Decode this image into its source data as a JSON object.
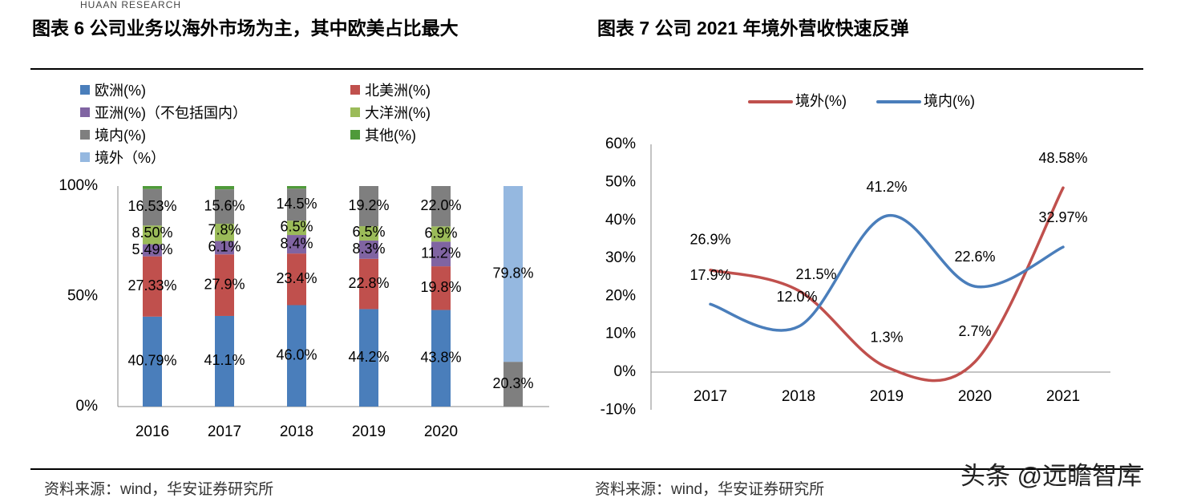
{
  "header": {
    "brand": "HUAAN RESEARCH"
  },
  "left": {
    "title": "图表 6 公司业务以海外市场为主，其中欧美占比最大",
    "source": "资料来源：wind，华安证券研究所"
  },
  "right": {
    "title": "图表 7  公司 2021 年境外营收快速反弹",
    "source": "资料来源：wind，华安证券研究所"
  },
  "watermark": "头条 @远瞻智库",
  "chart_data": [
    {
      "type": "bar",
      "stacked": true,
      "categories": [
        "2016",
        "2017",
        "2018",
        "2019",
        "2020",
        ""
      ],
      "ylim": [
        0,
        100
      ],
      "yticks": [
        "0%",
        "50%",
        "100%"
      ],
      "legend_position": "top",
      "series": [
        {
          "name": "欧洲(%)",
          "color": "#4a7ebb",
          "values": [
            40.79,
            41.1,
            46.0,
            44.2,
            43.8,
            null
          ],
          "labels": [
            "40.79%",
            "41.1%",
            "46.0%",
            "44.2%",
            "43.8%",
            ""
          ]
        },
        {
          "name": "北美洲(%)",
          "color": "#c0504d",
          "values": [
            27.33,
            27.9,
            23.4,
            22.8,
            19.8,
            null
          ],
          "labels": [
            "27.33%",
            "27.9%",
            "23.4%",
            "22.8%",
            "19.8%",
            ""
          ]
        },
        {
          "name": "亚洲(%)（不包括国内）",
          "color": "#8064a2",
          "values": [
            5.49,
            6.1,
            8.4,
            8.3,
            11.2,
            null
          ],
          "labels": [
            "5.49%",
            "6.1%",
            "8.4%",
            "8.3%",
            "11.2%",
            ""
          ]
        },
        {
          "name": "大洋洲(%)",
          "color": "#9bbb59",
          "values": [
            8.5,
            7.8,
            6.5,
            6.5,
            6.9,
            null
          ],
          "labels": [
            "8.50%",
            "7.8%",
            "6.5%",
            "6.5%",
            "6.9%",
            ""
          ]
        },
        {
          "name": "境内(%)",
          "color": "#7f7f7f",
          "values": [
            16.53,
            15.6,
            14.5,
            19.2,
            22.0,
            20.3
          ],
          "labels": [
            "16.53%",
            "15.6%",
            "14.5%",
            "19.2%",
            "22.0%",
            "20.3%"
          ]
        },
        {
          "name": "其他(%)",
          "color": "#4f9a3a",
          "values": [
            1.4,
            1.5,
            1.2,
            1.3,
            0.5,
            null
          ],
          "labels": [
            "",
            "",
            "",
            "",
            "",
            ""
          ]
        },
        {
          "name": "境外（%）",
          "color": "#95b8e0",
          "values": [
            null,
            null,
            null,
            null,
            null,
            79.8
          ],
          "labels": [
            "",
            "",
            "",
            "",
            "",
            "79.8%"
          ]
        }
      ]
    },
    {
      "type": "line",
      "smooth": true,
      "categories": [
        "2017",
        "2018",
        "2019",
        "2020",
        "2021"
      ],
      "ylim": [
        -10,
        60
      ],
      "yticks": [
        "-10%",
        "0%",
        "10%",
        "20%",
        "30%",
        "40%",
        "50%",
        "60%"
      ],
      "legend_position": "top",
      "series": [
        {
          "name": "境外(%)",
          "color": "#c0504d",
          "values": [
            26.9,
            21.5,
            1.3,
            2.7,
            48.58
          ],
          "labels": [
            "26.9%",
            "21.5%",
            "1.3%",
            "2.7%",
            "48.58%"
          ]
        },
        {
          "name": "境内(%)",
          "color": "#4a7ebb",
          "values": [
            17.9,
            12.0,
            41.2,
            22.6,
            32.97
          ],
          "labels": [
            "17.9%",
            "12.0%",
            "41.2%",
            "22.6%",
            "32.97%"
          ]
        }
      ]
    }
  ]
}
